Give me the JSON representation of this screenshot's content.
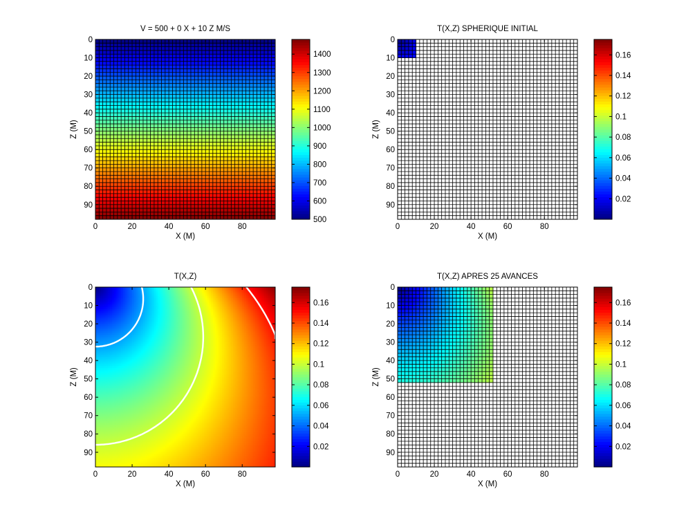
{
  "chart_data": [
    {
      "type": "heatmap",
      "title": "V = 500 +  0 X + 10 Z M/S",
      "xlabel": "X (M)",
      "ylabel": "Z (M)",
      "xlim": [
        0,
        98
      ],
      "ylim": [
        98,
        0
      ],
      "xticks": [
        "0",
        "20",
        "40",
        "60",
        "80"
      ],
      "yticks": [
        "0",
        "10",
        "20",
        "30",
        "40",
        "50",
        "60",
        "70",
        "80",
        "90"
      ],
      "field": {
        "kind": "linear_z",
        "base": 500,
        "gx": 0,
        "gz": 10
      },
      "grid_spacing": 2,
      "grid_lines": true,
      "colorbar": {
        "min": 500,
        "max": 1480,
        "ticks": [
          500,
          600,
          700,
          800,
          900,
          1000,
          1100,
          1200,
          1300,
          1400
        ],
        "tick_labels": [
          "500",
          "600",
          "700",
          "800",
          "900",
          "1000",
          "1100",
          "1200",
          "1300",
          "1400"
        ]
      }
    },
    {
      "type": "heatmap",
      "title": "T(X,Z) SPHERIQUE INITIAL",
      "xlabel": "X (M)",
      "ylabel": "Z (M)",
      "xlim": [
        0,
        98
      ],
      "ylim": [
        98,
        0
      ],
      "xticks": [
        "0",
        "20",
        "40",
        "60",
        "80"
      ],
      "yticks": [
        "0",
        "10",
        "20",
        "30",
        "40",
        "50",
        "60",
        "70",
        "80",
        "90"
      ],
      "field": {
        "kind": "traveltime",
        "filled_extent": 10
      },
      "grid_spacing": 2,
      "grid_lines": true,
      "colorbar": {
        "min": 0.0,
        "max": 0.175,
        "ticks": [
          0.02,
          0.04,
          0.06,
          0.08,
          0.1,
          0.12,
          0.14,
          0.16
        ],
        "tick_labels": [
          "0.02",
          "0.04",
          "0.06",
          "0.08",
          "0.1",
          "0.12",
          "0.14",
          "0.16"
        ]
      }
    },
    {
      "type": "heatmap",
      "title": "T(X,Z)",
      "xlabel": "X (M)",
      "ylabel": "Z (M)",
      "xlim": [
        0,
        98
      ],
      "ylim": [
        98,
        0
      ],
      "xticks": [
        "0",
        "20",
        "40",
        "60",
        "80"
      ],
      "yticks": [
        "0",
        "10",
        "20",
        "30",
        "40",
        "50",
        "60",
        "70",
        "80",
        "90"
      ],
      "field": {
        "kind": "traveltime",
        "filled_extent": 98
      },
      "grid_spacing": 2,
      "grid_lines": false,
      "contours": [
        0.05,
        0.1,
        0.15
      ],
      "colorbar": {
        "min": 0.0,
        "max": 0.175,
        "ticks": [
          0.02,
          0.04,
          0.06,
          0.08,
          0.1,
          0.12,
          0.14,
          0.16
        ],
        "tick_labels": [
          "0.02",
          "0.04",
          "0.06",
          "0.08",
          "0.1",
          "0.12",
          "0.14",
          "0.16"
        ]
      }
    },
    {
      "type": "heatmap",
      "title": "T(X,Z) APRES 25 AVANCES",
      "xlabel": "X (M)",
      "ylabel": "Z (M)",
      "xlim": [
        0,
        98
      ],
      "ylim": [
        98,
        0
      ],
      "xticks": [
        "0",
        "20",
        "40",
        "60",
        "80"
      ],
      "yticks": [
        "0",
        "10",
        "20",
        "30",
        "40",
        "50",
        "60",
        "70",
        "80",
        "90"
      ],
      "field": {
        "kind": "traveltime",
        "filled_extent": 52
      },
      "grid_spacing": 2,
      "grid_lines": true,
      "colorbar": {
        "min": 0.0,
        "max": 0.175,
        "ticks": [
          0.02,
          0.04,
          0.06,
          0.08,
          0.1,
          0.12,
          0.14,
          0.16
        ],
        "tick_labels": [
          "0.02",
          "0.04",
          "0.06",
          "0.08",
          "0.1",
          "0.12",
          "0.14",
          "0.16"
        ]
      }
    }
  ]
}
